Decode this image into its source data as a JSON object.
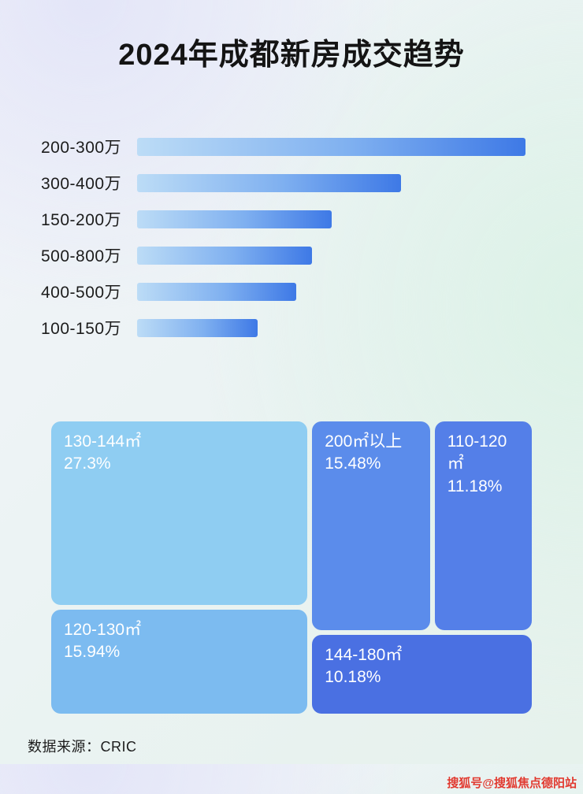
{
  "page": {
    "title": "2024年成都新房成交趋势",
    "source": "数据来源：CRIC",
    "watermark": "搜狐号@搜狐焦点德阳站"
  },
  "colors": {
    "bar_gradient_start": "#bcdcf6",
    "bar_gradient_end": "#3e79e6",
    "title_text": "#141414",
    "watermark_red": "#e03a30"
  },
  "chart_data": [
    {
      "type": "bar",
      "orientation": "horizontal",
      "title": "2024年成都新房成交趋势",
      "categories": [
        "200-300万",
        "300-400万",
        "150-200万",
        "500-800万",
        "400-500万",
        "100-150万"
      ],
      "values": [
        100,
        68,
        50,
        45,
        41,
        31
      ],
      "value_note": "relative bar length, % of longest bar; no numeric axis or data labels shown",
      "xlabel": "",
      "ylabel": "",
      "grid": false,
      "legend": false
    },
    {
      "type": "treemap",
      "title": "",
      "items": [
        {
          "label": "130-144㎡",
          "share": "27.3%",
          "color": "#8fcdf2"
        },
        {
          "label": "120-130㎡",
          "share": "15.94%",
          "color": "#7cbbf0"
        },
        {
          "label": "200㎡以上",
          "share": "15.48%",
          "color": "#5b8ceb"
        },
        {
          "label": "110-120㎡",
          "share": "11.18%",
          "color": "#547fe8"
        },
        {
          "label": "144-180㎡",
          "share": "10.18%",
          "color": "#4a70e2"
        }
      ]
    }
  ]
}
